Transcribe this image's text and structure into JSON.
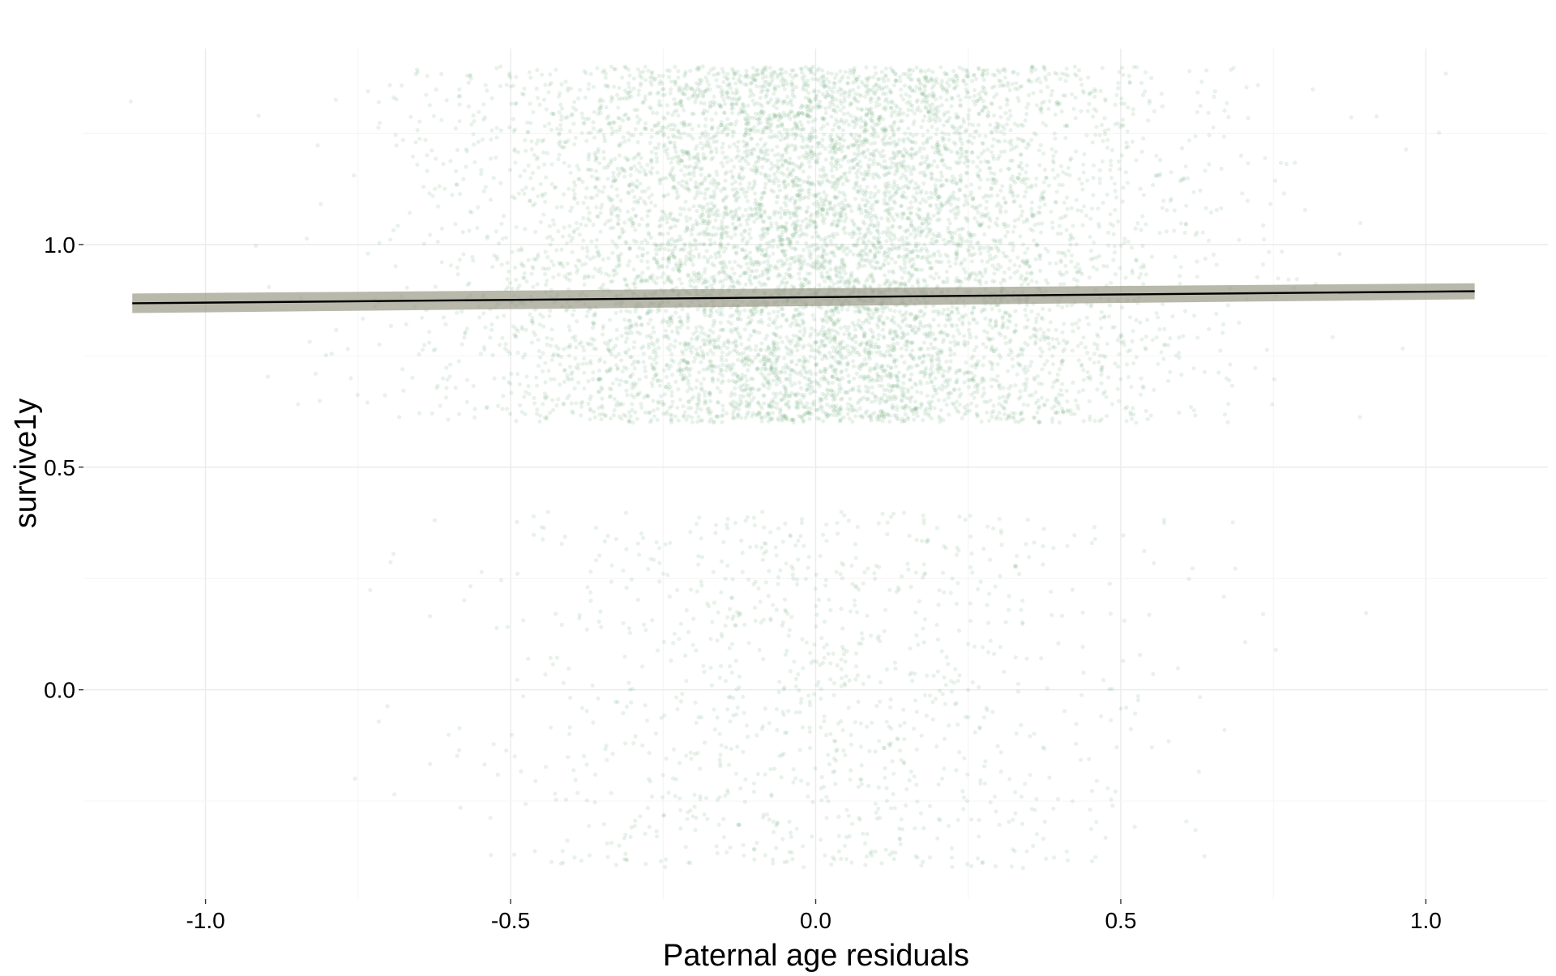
{
  "chart_data": {
    "type": "scatter",
    "title": "",
    "xlabel": "Paternal age residuals",
    "ylabel": "survive1y",
    "xlim": [
      -1.2,
      1.2
    ],
    "ylim": [
      -0.47,
      1.44
    ],
    "x_ticks": [
      -1.0,
      -0.5,
      0.0,
      0.5,
      1.0
    ],
    "x_tick_labels": [
      "-1.0",
      "-0.5",
      "0.0",
      "0.5",
      "1.0"
    ],
    "y_ticks": [
      0.0,
      0.5,
      1.0
    ],
    "y_tick_labels": [
      "0.0",
      "0.5",
      "1.0"
    ],
    "grid": true,
    "legend": "none",
    "points": {
      "description_of_distribution": "jittered binary outcome; survivors jittered in [0.6, 1.4], non-survivors jittered in [-0.4, 0.4]",
      "survivor_jitter_range": [
        0.6,
        1.4
      ],
      "nonsurvivor_jitter_range": [
        -0.4,
        0.4
      ],
      "x_center": 0.0,
      "x_spread_sd": 0.27,
      "survivor_share": 0.88,
      "color": "#5fa36a",
      "opacity": 0.14
    },
    "fit_line": {
      "x": [
        -1.12,
        1.08
      ],
      "y": [
        0.868,
        0.895
      ],
      "ci_half_width": [
        0.022,
        0.018
      ],
      "line_color": "#000000",
      "band_color": "#9a9a88"
    }
  }
}
